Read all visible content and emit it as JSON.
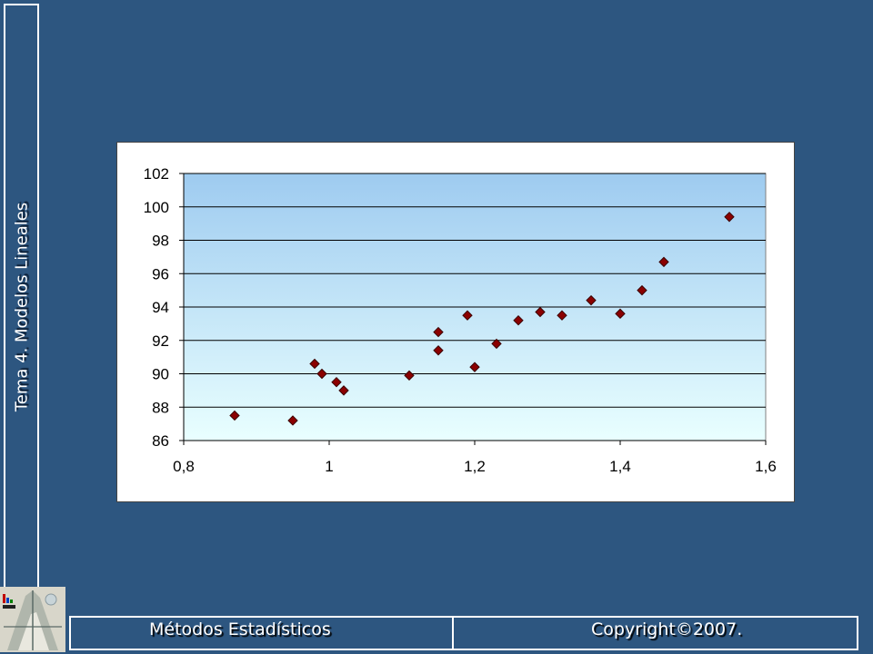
{
  "side_title": "Tema 4. Modelos Lineales",
  "footer": {
    "left_text": "Métodos Estadísticos",
    "right_text": "Copyright©2007."
  },
  "colors": {
    "background": "#2d5680",
    "marker": "#8b0000",
    "plot_top": "#9ecbf0",
    "plot_bottom": "#e9ffff"
  },
  "chart_data": {
    "type": "scatter",
    "title": "",
    "xlabel": "",
    "ylabel": "",
    "xlim": [
      0.8,
      1.6
    ],
    "ylim": [
      86,
      102
    ],
    "xticks": [
      0.8,
      1.0,
      1.2,
      1.4,
      1.6
    ],
    "xtick_labels": [
      "0,8",
      "1",
      "1,2",
      "1,4",
      "1,6"
    ],
    "yticks": [
      86,
      88,
      90,
      92,
      94,
      96,
      98,
      100,
      102
    ],
    "ytick_labels": [
      "86",
      "88",
      "90",
      "92",
      "94",
      "96",
      "98",
      "100",
      "102"
    ],
    "grid": "horizontal",
    "legend": "none",
    "marker": "diamond",
    "series": [
      {
        "points": [
          [
            0.87,
            87.5
          ],
          [
            0.95,
            87.2
          ],
          [
            0.98,
            90.6
          ],
          [
            0.99,
            90.0
          ],
          [
            1.01,
            89.5
          ],
          [
            1.02,
            89.0
          ],
          [
            1.11,
            89.9
          ],
          [
            1.15,
            92.5
          ],
          [
            1.15,
            91.4
          ],
          [
            1.19,
            93.5
          ],
          [
            1.2,
            90.4
          ],
          [
            1.23,
            91.8
          ],
          [
            1.26,
            93.2
          ],
          [
            1.29,
            93.7
          ],
          [
            1.32,
            93.5
          ],
          [
            1.36,
            94.4
          ],
          [
            1.4,
            93.6
          ],
          [
            1.43,
            95.0
          ],
          [
            1.46,
            96.7
          ],
          [
            1.55,
            99.4
          ]
        ]
      }
    ]
  }
}
